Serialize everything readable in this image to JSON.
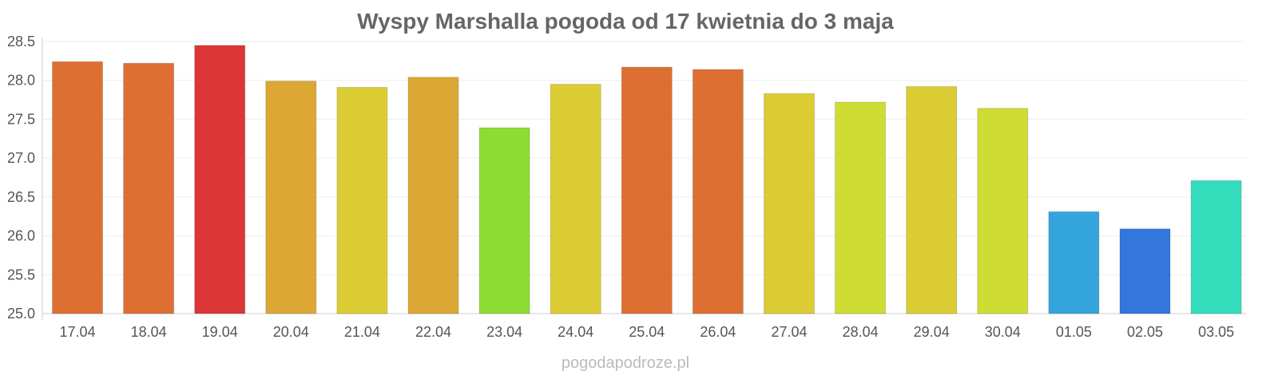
{
  "chart_data": {
    "type": "bar",
    "title": "Wyspy Marshalla pogoda od 17 kwietnia do 3 maja",
    "xlabel": "",
    "ylabel": "",
    "ylim": [
      25.0,
      28.5
    ],
    "yticks": [
      "25.0",
      "25.5",
      "26.0",
      "26.5",
      "27.0",
      "27.5",
      "28.0",
      "28.5"
    ],
    "grid": true,
    "categories": [
      "17.04",
      "18.04",
      "19.04",
      "20.04",
      "21.04",
      "22.04",
      "23.04",
      "24.04",
      "25.04",
      "26.04",
      "27.04",
      "28.04",
      "29.04",
      "30.04",
      "01.05",
      "02.05",
      "03.05"
    ],
    "values": [
      28.24,
      28.22,
      28.45,
      27.99,
      27.91,
      28.04,
      27.39,
      27.95,
      28.17,
      28.14,
      27.83,
      27.72,
      27.92,
      27.64,
      26.31,
      26.09,
      26.71
    ],
    "colors": [
      "#dd6f33",
      "#dd6f33",
      "#dc3535",
      "#dca833",
      "#dccc33",
      "#dca833",
      "#8ddc33",
      "#dccc33",
      "#dd6f33",
      "#dd6f33",
      "#dccc33",
      "#cfdc33",
      "#dccc33",
      "#cfdc33",
      "#33a5dc",
      "#3377dc",
      "#33dcbb"
    ]
  },
  "watermark": "pogodapodroze.pl"
}
